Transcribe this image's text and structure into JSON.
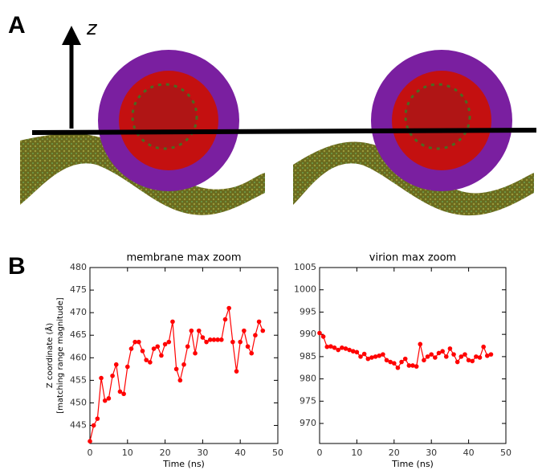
{
  "panel_a": {
    "label": "A",
    "axis": "z"
  },
  "panel_b": {
    "label": "B"
  },
  "chart_data": [
    {
      "type": "line",
      "title": "membrane max zoom",
      "xlabel": "Time (ns)",
      "ylabel": [
        "Z coordinate (Å)",
        "[matching range magnitude]"
      ],
      "x": [
        0,
        1,
        2,
        3,
        4,
        5,
        6,
        7,
        8,
        9,
        10,
        11,
        12,
        13,
        14,
        15,
        16,
        17,
        18,
        19,
        20,
        21,
        22,
        23,
        24,
        25,
        26,
        27,
        28,
        29,
        30,
        31,
        32,
        33,
        34,
        35,
        36,
        37,
        38,
        39,
        40,
        41,
        42,
        43,
        44,
        45,
        46
      ],
      "series": [
        {
          "color": "#ff0000",
          "values": [
            441.5,
            445,
            446.5,
            455.5,
            450.5,
            451,
            456,
            458.5,
            452.5,
            452,
            458,
            462,
            463.5,
            463.5,
            461.5,
            459.5,
            459,
            462,
            462.5,
            460.5,
            463,
            463.5,
            468,
            457.5,
            455,
            458.5,
            462.5,
            466,
            461,
            466,
            464.5,
            463.5,
            464,
            464,
            464,
            464,
            468.5,
            471,
            463.5,
            457,
            463.5,
            466,
            462.5,
            461,
            465,
            468,
            466
          ]
        }
      ],
      "xlim": [
        0,
        50
      ],
      "xticks": [
        0,
        10,
        20,
        30,
        40,
        50
      ],
      "ylim": [
        441,
        480
      ],
      "yticks": [
        445,
        450,
        455,
        460,
        465,
        470,
        475,
        480
      ]
    },
    {
      "type": "line",
      "title": "virion max zoom",
      "xlabel": "Time (ns)",
      "x": [
        0,
        1,
        2,
        3,
        4,
        5,
        6,
        7,
        8,
        9,
        10,
        11,
        12,
        13,
        14,
        15,
        16,
        17,
        18,
        19,
        20,
        21,
        22,
        23,
        24,
        25,
        26,
        27,
        28,
        29,
        30,
        31,
        32,
        33,
        34,
        35,
        36,
        37,
        38,
        39,
        40,
        41,
        42,
        43,
        44,
        45,
        46
      ],
      "series": [
        {
          "color": "#ff0000",
          "values": [
            990.3,
            989.5,
            987.2,
            987.3,
            987,
            986.5,
            987,
            986.8,
            986.5,
            986.2,
            986,
            985,
            985.6,
            984.5,
            984.8,
            985,
            985.2,
            985.5,
            984.2,
            983.8,
            983.5,
            982.5,
            983.8,
            984.5,
            983,
            983,
            982.8,
            987.8,
            984.2,
            985,
            985.5,
            984.8,
            985.8,
            986.2,
            985,
            986.8,
            985.5,
            983.8,
            985,
            985.5,
            984.2,
            984,
            985,
            984.8,
            987.2,
            985.2,
            985.5
          ]
        }
      ],
      "xlim": [
        0,
        50
      ],
      "xticks": [
        0,
        10,
        20,
        30,
        40,
        50
      ],
      "ylim": [
        965.5,
        1005
      ],
      "yticks": [
        970,
        975,
        980,
        985,
        990,
        995,
        1000,
        1005
      ]
    }
  ]
}
